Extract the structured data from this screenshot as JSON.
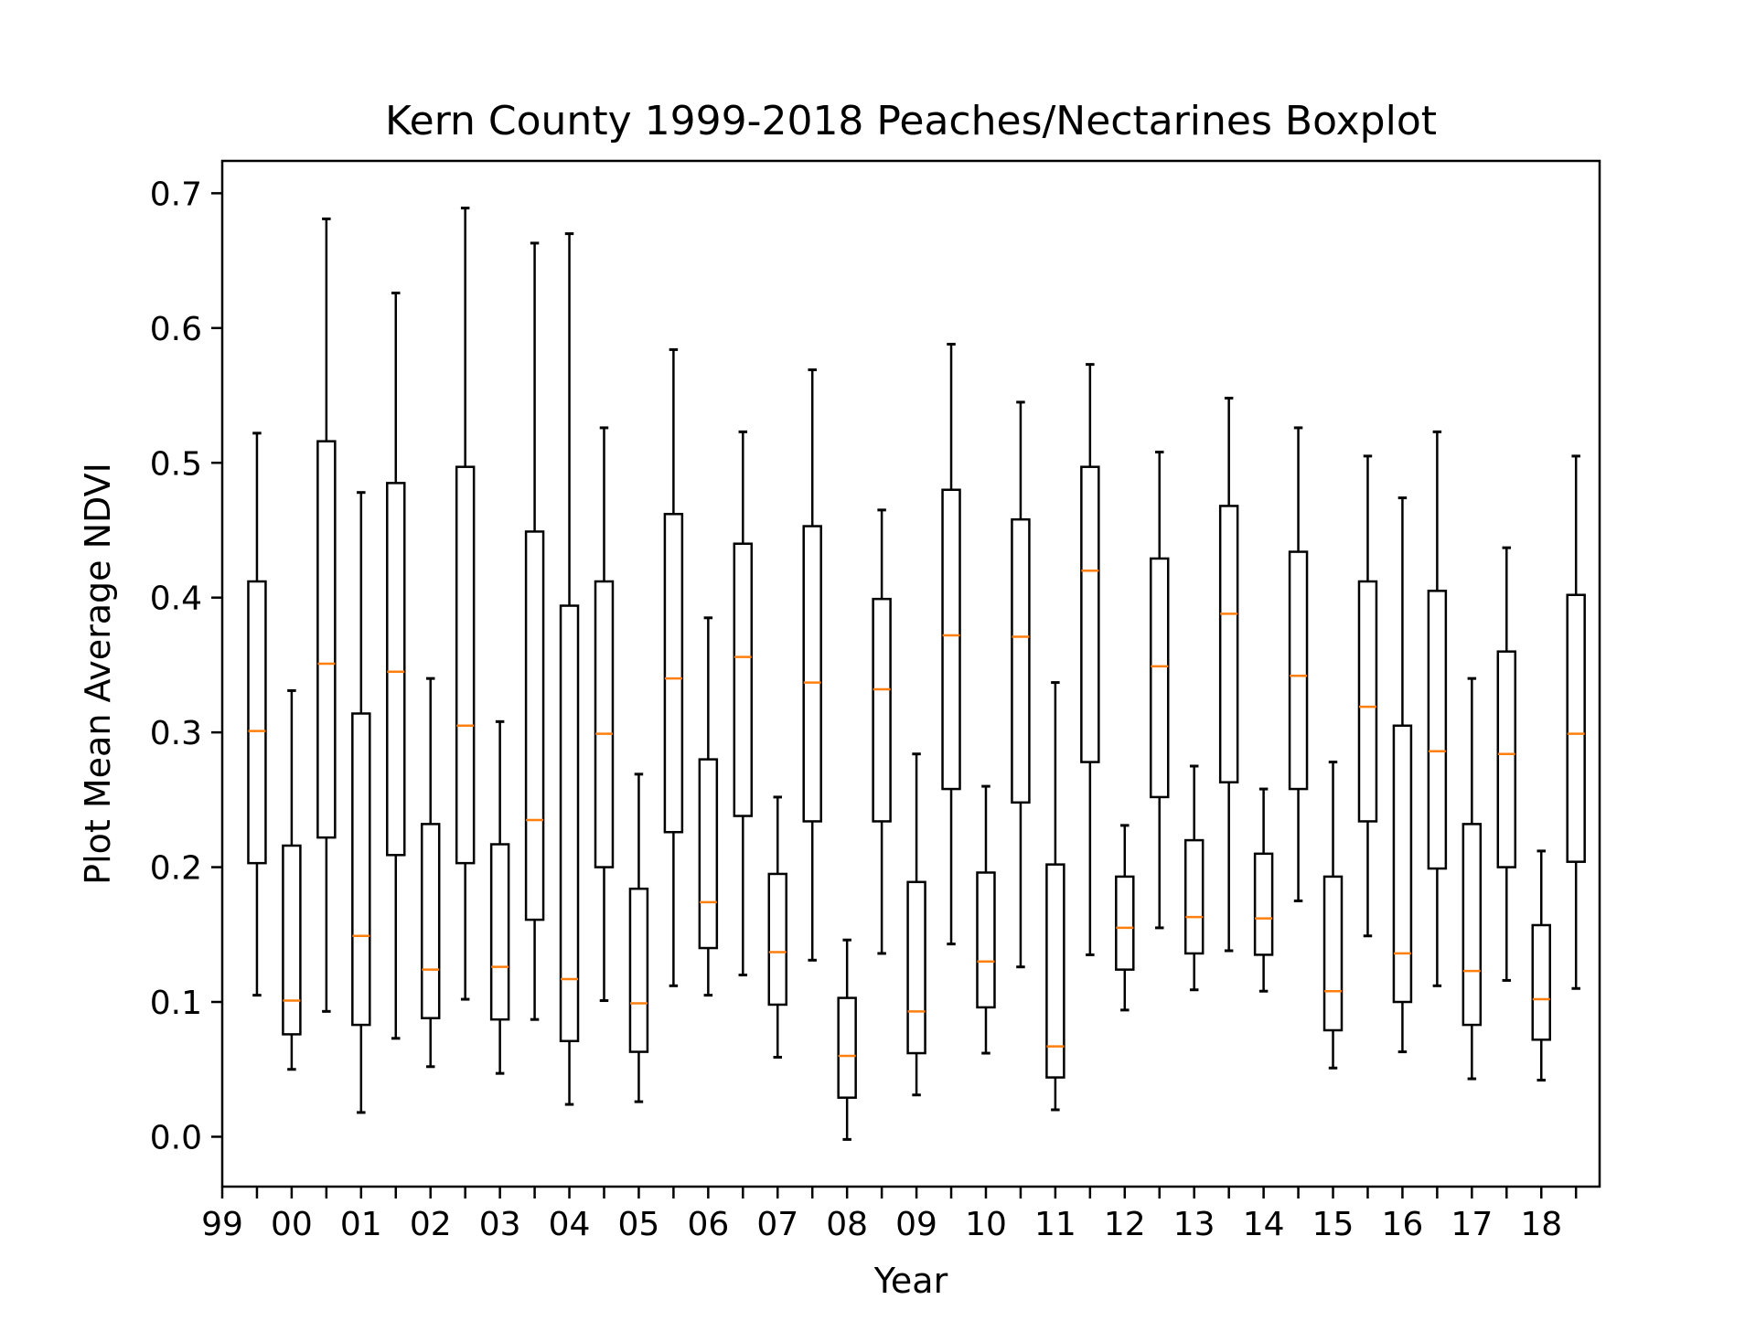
{
  "chart_data": {
    "type": "boxplot",
    "title": "Kern County 1999-2018 Peaches/Nectarines Boxplot",
    "xlabel": "Year",
    "ylabel": "Plot Mean Average NDVI",
    "ylim": [
      -0.037,
      0.724
    ],
    "yticks": [
      "0.0",
      "0.1",
      "0.2",
      "0.3",
      "0.4",
      "0.5",
      "0.6",
      "0.7"
    ],
    "xtick_labels": [
      "99",
      "00",
      "01",
      "02",
      "03",
      "04",
      "05",
      "06",
      "07",
      "08",
      "09",
      "10",
      "11",
      "12",
      "13",
      "14",
      "15",
      "16",
      "17",
      "18"
    ],
    "median_color": "#ff7f0e",
    "box_color": "#000000",
    "grid": false,
    "boxes": [
      {
        "x": 0.5,
        "whislo": 0.105,
        "q1": 0.203,
        "med": 0.301,
        "q3": 0.412,
        "whishi": 0.522
      },
      {
        "x": 1.0,
        "whislo": 0.05,
        "q1": 0.076,
        "med": 0.101,
        "q3": 0.216,
        "whishi": 0.331
      },
      {
        "x": 1.5,
        "whislo": 0.093,
        "q1": 0.222,
        "med": 0.351,
        "q3": 0.516,
        "whishi": 0.681
      },
      {
        "x": 2.0,
        "whislo": 0.018,
        "q1": 0.083,
        "med": 0.149,
        "q3": 0.314,
        "whishi": 0.478
      },
      {
        "x": 2.5,
        "whislo": 0.073,
        "q1": 0.209,
        "med": 0.345,
        "q3": 0.485,
        "whishi": 0.626
      },
      {
        "x": 3.0,
        "whislo": 0.052,
        "q1": 0.088,
        "med": 0.124,
        "q3": 0.232,
        "whishi": 0.34
      },
      {
        "x": 3.5,
        "whislo": 0.102,
        "q1": 0.203,
        "med": 0.305,
        "q3": 0.497,
        "whishi": 0.689
      },
      {
        "x": 4.0,
        "whislo": 0.047,
        "q1": 0.087,
        "med": 0.126,
        "q3": 0.217,
        "whishi": 0.308
      },
      {
        "x": 4.5,
        "whislo": 0.087,
        "q1": 0.161,
        "med": 0.235,
        "q3": 0.449,
        "whishi": 0.663
      },
      {
        "x": 5.0,
        "whislo": 0.024,
        "q1": 0.071,
        "med": 0.117,
        "q3": 0.394,
        "whishi": 0.67
      },
      {
        "x": 5.5,
        "whislo": 0.101,
        "q1": 0.2,
        "med": 0.299,
        "q3": 0.412,
        "whishi": 0.526
      },
      {
        "x": 6.0,
        "whislo": 0.026,
        "q1": 0.063,
        "med": 0.099,
        "q3": 0.184,
        "whishi": 0.269
      },
      {
        "x": 6.5,
        "whislo": 0.112,
        "q1": 0.226,
        "med": 0.34,
        "q3": 0.462,
        "whishi": 0.584
      },
      {
        "x": 7.0,
        "whislo": 0.105,
        "q1": 0.14,
        "med": 0.174,
        "q3": 0.28,
        "whishi": 0.385
      },
      {
        "x": 7.5,
        "whislo": 0.12,
        "q1": 0.238,
        "med": 0.356,
        "q3": 0.44,
        "whishi": 0.523
      },
      {
        "x": 8.0,
        "whislo": 0.059,
        "q1": 0.098,
        "med": 0.137,
        "q3": 0.195,
        "whishi": 0.252
      },
      {
        "x": 8.5,
        "whislo": 0.131,
        "q1": 0.234,
        "med": 0.337,
        "q3": 0.453,
        "whishi": 0.569
      },
      {
        "x": 9.0,
        "whislo": -0.002,
        "q1": 0.029,
        "med": 0.06,
        "q3": 0.103,
        "whishi": 0.146
      },
      {
        "x": 9.5,
        "whislo": 0.136,
        "q1": 0.234,
        "med": 0.332,
        "q3": 0.399,
        "whishi": 0.465
      },
      {
        "x": 10.0,
        "whislo": 0.031,
        "q1": 0.062,
        "med": 0.093,
        "q3": 0.189,
        "whishi": 0.284
      },
      {
        "x": 10.5,
        "whislo": 0.143,
        "q1": 0.258,
        "med": 0.372,
        "q3": 0.48,
        "whishi": 0.588
      },
      {
        "x": 11.0,
        "whislo": 0.062,
        "q1": 0.096,
        "med": 0.13,
        "q3": 0.196,
        "whishi": 0.26
      },
      {
        "x": 11.5,
        "whislo": 0.126,
        "q1": 0.248,
        "med": 0.371,
        "q3": 0.458,
        "whishi": 0.545
      },
      {
        "x": 12.0,
        "whislo": 0.02,
        "q1": 0.044,
        "med": 0.067,
        "q3": 0.202,
        "whishi": 0.337
      },
      {
        "x": 12.5,
        "whislo": 0.135,
        "q1": 0.278,
        "med": 0.42,
        "q3": 0.497,
        "whishi": 0.573
      },
      {
        "x": 13.0,
        "whislo": 0.094,
        "q1": 0.124,
        "med": 0.155,
        "q3": 0.193,
        "whishi": 0.231
      },
      {
        "x": 13.5,
        "whislo": 0.155,
        "q1": 0.252,
        "med": 0.349,
        "q3": 0.429,
        "whishi": 0.508
      },
      {
        "x": 14.0,
        "whislo": 0.109,
        "q1": 0.136,
        "med": 0.163,
        "q3": 0.22,
        "whishi": 0.275
      },
      {
        "x": 14.5,
        "whislo": 0.138,
        "q1": 0.263,
        "med": 0.388,
        "q3": 0.468,
        "whishi": 0.548
      },
      {
        "x": 15.0,
        "whislo": 0.108,
        "q1": 0.135,
        "med": 0.162,
        "q3": 0.21,
        "whishi": 0.258
      },
      {
        "x": 15.5,
        "whislo": 0.175,
        "q1": 0.258,
        "med": 0.342,
        "q3": 0.434,
        "whishi": 0.526
      },
      {
        "x": 16.0,
        "whislo": 0.051,
        "q1": 0.079,
        "med": 0.108,
        "q3": 0.193,
        "whishi": 0.278
      },
      {
        "x": 16.5,
        "whislo": 0.149,
        "q1": 0.234,
        "med": 0.319,
        "q3": 0.412,
        "whishi": 0.505
      },
      {
        "x": 17.0,
        "whislo": 0.063,
        "q1": 0.1,
        "med": 0.136,
        "q3": 0.305,
        "whishi": 0.474
      },
      {
        "x": 17.5,
        "whislo": 0.112,
        "q1": 0.199,
        "med": 0.286,
        "q3": 0.405,
        "whishi": 0.523
      },
      {
        "x": 18.0,
        "whislo": 0.043,
        "q1": 0.083,
        "med": 0.123,
        "q3": 0.232,
        "whishi": 0.34
      },
      {
        "x": 18.5,
        "whislo": 0.116,
        "q1": 0.2,
        "med": 0.284,
        "q3": 0.36,
        "whishi": 0.437
      },
      {
        "x": 19.0,
        "whislo": 0.042,
        "q1": 0.072,
        "med": 0.102,
        "q3": 0.157,
        "whishi": 0.212
      },
      {
        "x": 19.5,
        "whislo": 0.11,
        "q1": 0.204,
        "med": 0.299,
        "q3": 0.402,
        "whishi": 0.505
      }
    ]
  }
}
